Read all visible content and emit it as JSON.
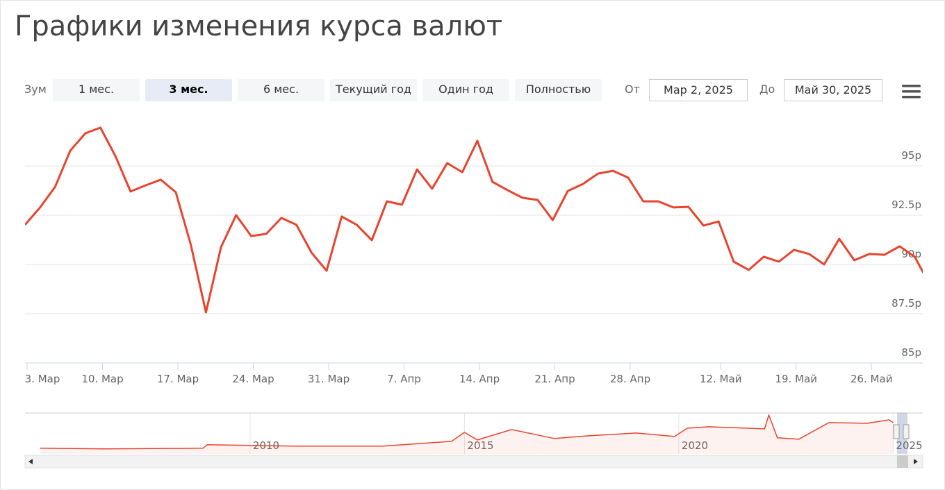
{
  "ui": {
    "zoom_label": "Зум",
    "buttons": [
      "1 мес.",
      "3 мес.",
      "6 мес.",
      "Текущий год",
      "Один год",
      "Полностью"
    ],
    "selected": 1,
    "from_label": "От",
    "from": "Мар 2, 2025",
    "to_label": "До",
    "to": "Май 30, 2025"
  },
  "chart_data": [
    {
      "type": "line",
      "title": "Графики изменения курса валют",
      "color": "#e8432d",
      "grid": true,
      "categories": [
        "3. Мар",
        null,
        null,
        null,
        null,
        "10. Мар",
        null,
        null,
        null,
        null,
        "17. Мар",
        null,
        null,
        null,
        null,
        "24. Мар",
        null,
        null,
        null,
        null,
        "31. Мар",
        null,
        null,
        null,
        null,
        "7. Апр",
        null,
        null,
        null,
        null,
        "14. Апр",
        null,
        null,
        null,
        null,
        "21. Апр",
        null,
        null,
        null,
        null,
        "28. Апр",
        null,
        null,
        null,
        null,
        null,
        "12. Май",
        null,
        null,
        null,
        null,
        "19. Май",
        null,
        null,
        null,
        null,
        "26. Май",
        null,
        null,
        null,
        null
      ],
      "values": [
        92.01,
        92.89,
        93.94,
        95.77,
        96.65,
        96.94,
        95.49,
        93.7,
        94.01,
        94.3,
        93.66,
        90.99,
        87.57,
        90.88,
        92.5,
        91.44,
        91.55,
        92.36,
        92.01,
        90.6,
        89.68,
        92.43,
        92.01,
        91.23,
        93.2,
        93.03,
        94.82,
        93.84,
        95.14,
        94.68,
        96.27,
        94.19,
        93.77,
        93.38,
        93.27,
        92.25,
        93.73,
        94.08,
        94.61,
        94.75,
        94.4,
        93.2,
        93.2,
        92.89,
        92.92,
        91.97,
        92.18,
        90.14,
        89.72,
        90.39,
        90.14,
        90.74,
        90.53,
        90.0,
        91.3,
        90.21,
        90.53,
        90.49,
        90.92,
        90.39,
        88.98
      ],
      "ylim": [
        85,
        97.57
      ],
      "yticks": [
        {
          "value": 85,
          "label": "85р"
        },
        {
          "value": 87.5,
          "label": "87.5р"
        },
        {
          "value": 90,
          "label": "90р"
        },
        {
          "value": 92.5,
          "label": "92.5р"
        },
        {
          "value": 95,
          "label": "95р"
        }
      ]
    },
    {
      "type": "area",
      "color": "#e8432d",
      "x": [
        2005.1,
        2006.6,
        2008.9,
        2009.0,
        2010,
        2011,
        2012.1,
        2013.1,
        2014.0,
        2014.7,
        2015.0,
        2015.3,
        2016.1,
        2017.1,
        2017.9,
        2019.0,
        2019.9,
        2020.2,
        2020.7,
        2022.0,
        2022.1,
        2022.3,
        2022.8,
        2023.5,
        2024.4,
        2024.9,
        2025.0
      ],
      "values": [
        28,
        26.4,
        28,
        36,
        34.4,
        32.8,
        32.8,
        32.8,
        39.1,
        43.9,
        64.6,
        47.1,
        70.9,
        50.3,
        56.6,
        63,
        55,
        74.1,
        77.3,
        72.5,
        104.3,
        51.9,
        48.7,
        86.8,
        85.2,
        93.2,
        86.8
      ],
      "xlim": [
        2004.75,
        2025.69
      ],
      "xticks": [
        2010,
        2015,
        2020,
        2025
      ],
      "ylim": [
        15,
        109
      ]
    }
  ]
}
